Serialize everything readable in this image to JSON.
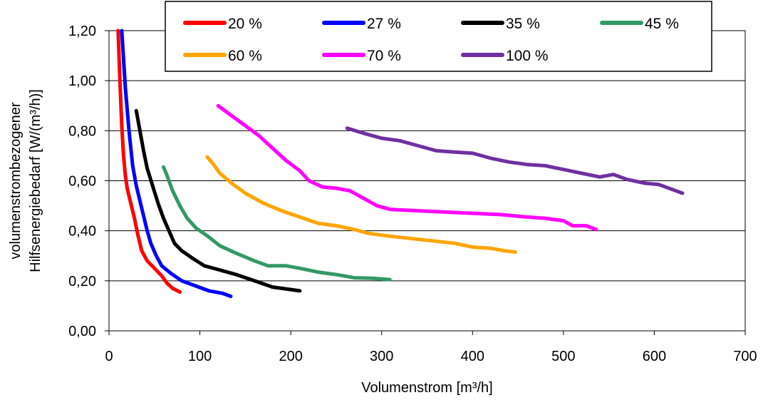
{
  "chart_data": {
    "type": "line",
    "title": "",
    "xlabel": "Volumenstrom [m³/h]",
    "ylabel_lines": [
      "volumenstrombezogener",
      "Hilfsenergiebedarf [W/(m³/h)]"
    ],
    "xlim": [
      0,
      700
    ],
    "ylim": [
      0,
      1.2
    ],
    "x_ticks": [
      0,
      100,
      200,
      300,
      400,
      500,
      600,
      700
    ],
    "x_tick_labels": [
      "0",
      "100",
      "200",
      "300",
      "400",
      "500",
      "600",
      "700"
    ],
    "y_ticks": [
      0,
      0.2,
      0.4,
      0.6,
      0.8,
      1.0,
      1.2
    ],
    "y_tick_labels": [
      "0,00",
      "0,20",
      "0,40",
      "0,60",
      "0,80",
      "1,00",
      "1,20"
    ],
    "grid": "horizontal",
    "legend_position": "top",
    "series": [
      {
        "name": "20 %",
        "color": "#ff0000",
        "points": [
          [
            10,
            1.2
          ],
          [
            12,
            1.0
          ],
          [
            14,
            0.82
          ],
          [
            16,
            0.7
          ],
          [
            18,
            0.62
          ],
          [
            20,
            0.57
          ],
          [
            24,
            0.51
          ],
          [
            28,
            0.45
          ],
          [
            32,
            0.38
          ],
          [
            36,
            0.32
          ],
          [
            42,
            0.28
          ],
          [
            50,
            0.25
          ],
          [
            58,
            0.22
          ],
          [
            64,
            0.19
          ],
          [
            70,
            0.17
          ],
          [
            78,
            0.155
          ]
        ]
      },
      {
        "name": "27 %",
        "color": "#0000ff",
        "points": [
          [
            14,
            1.2
          ],
          [
            18,
            0.97
          ],
          [
            22,
            0.8
          ],
          [
            26,
            0.66
          ],
          [
            30,
            0.58
          ],
          [
            34,
            0.52
          ],
          [
            38,
            0.46
          ],
          [
            42,
            0.4
          ],
          [
            46,
            0.35
          ],
          [
            52,
            0.3
          ],
          [
            58,
            0.26
          ],
          [
            68,
            0.23
          ],
          [
            80,
            0.2
          ],
          [
            95,
            0.18
          ],
          [
            110,
            0.16
          ],
          [
            125,
            0.15
          ],
          [
            134,
            0.138
          ]
        ]
      },
      {
        "name": "35 %",
        "color": "#000000",
        "points": [
          [
            30,
            0.88
          ],
          [
            34,
            0.8
          ],
          [
            38,
            0.72
          ],
          [
            42,
            0.65
          ],
          [
            48,
            0.58
          ],
          [
            54,
            0.51
          ],
          [
            60,
            0.45
          ],
          [
            66,
            0.4
          ],
          [
            72,
            0.35
          ],
          [
            80,
            0.32
          ],
          [
            92,
            0.29
          ],
          [
            105,
            0.26
          ],
          [
            120,
            0.245
          ],
          [
            140,
            0.225
          ],
          [
            160,
            0.2
          ],
          [
            180,
            0.175
          ],
          [
            200,
            0.165
          ],
          [
            210,
            0.16
          ]
        ]
      },
      {
        "name": "45 %",
        "color": "#339966",
        "points": [
          [
            60,
            0.655
          ],
          [
            64,
            0.62
          ],
          [
            70,
            0.56
          ],
          [
            78,
            0.5
          ],
          [
            86,
            0.45
          ],
          [
            96,
            0.41
          ],
          [
            108,
            0.38
          ],
          [
            122,
            0.34
          ],
          [
            140,
            0.31
          ],
          [
            160,
            0.28
          ],
          [
            175,
            0.26
          ],
          [
            195,
            0.26
          ],
          [
            210,
            0.25
          ],
          [
            230,
            0.235
          ],
          [
            250,
            0.225
          ],
          [
            270,
            0.212
          ],
          [
            290,
            0.21
          ],
          [
            309,
            0.205
          ]
        ]
      },
      {
        "name": "60 %",
        "color": "#ffa500",
        "points": [
          [
            108,
            0.695
          ],
          [
            114,
            0.67
          ],
          [
            122,
            0.63
          ],
          [
            135,
            0.59
          ],
          [
            150,
            0.55
          ],
          [
            170,
            0.51
          ],
          [
            190,
            0.48
          ],
          [
            210,
            0.455
          ],
          [
            230,
            0.43
          ],
          [
            250,
            0.42
          ],
          [
            270,
            0.405
          ],
          [
            285,
            0.39
          ],
          [
            305,
            0.38
          ],
          [
            330,
            0.37
          ],
          [
            355,
            0.36
          ],
          [
            380,
            0.35
          ],
          [
            400,
            0.335
          ],
          [
            420,
            0.33
          ],
          [
            435,
            0.32
          ],
          [
            447,
            0.315
          ]
        ]
      },
      {
        "name": "70 %",
        "color": "#ff00ff",
        "points": [
          [
            120,
            0.9
          ],
          [
            135,
            0.86
          ],
          [
            150,
            0.82
          ],
          [
            165,
            0.78
          ],
          [
            180,
            0.73
          ],
          [
            195,
            0.68
          ],
          [
            210,
            0.64
          ],
          [
            220,
            0.6
          ],
          [
            235,
            0.575
          ],
          [
            250,
            0.57
          ],
          [
            265,
            0.56
          ],
          [
            280,
            0.53
          ],
          [
            295,
            0.5
          ],
          [
            310,
            0.485
          ],
          [
            340,
            0.48
          ],
          [
            370,
            0.475
          ],
          [
            400,
            0.47
          ],
          [
            430,
            0.465
          ],
          [
            460,
            0.455
          ],
          [
            480,
            0.45
          ],
          [
            500,
            0.44
          ],
          [
            510,
            0.42
          ],
          [
            525,
            0.42
          ],
          [
            536,
            0.405
          ]
        ]
      },
      {
        "name": "100 %",
        "color": "#7030a0",
        "points": [
          [
            262,
            0.81
          ],
          [
            280,
            0.79
          ],
          [
            300,
            0.77
          ],
          [
            320,
            0.76
          ],
          [
            340,
            0.74
          ],
          [
            360,
            0.72
          ],
          [
            380,
            0.715
          ],
          [
            400,
            0.71
          ],
          [
            420,
            0.69
          ],
          [
            440,
            0.675
          ],
          [
            460,
            0.665
          ],
          [
            480,
            0.66
          ],
          [
            500,
            0.645
          ],
          [
            520,
            0.63
          ],
          [
            540,
            0.615
          ],
          [
            555,
            0.625
          ],
          [
            570,
            0.605
          ],
          [
            590,
            0.59
          ],
          [
            605,
            0.585
          ],
          [
            620,
            0.565
          ],
          [
            631,
            0.55
          ]
        ]
      }
    ]
  }
}
